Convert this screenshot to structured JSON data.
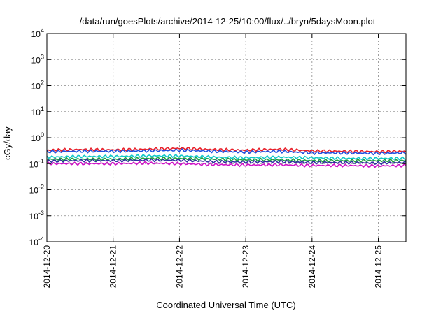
{
  "chart_data": {
    "type": "line",
    "title": "/data/run/goesPlots/archive/2014-12-25/10:00/flux/../bryn/5daysMoon.plot",
    "xlabel": "Coordinated Universal Time (UTC)",
    "ylabel": "cGy/day",
    "yscale": "log",
    "ylim": [
      0.0001,
      10000
    ],
    "y_ticks": [
      {
        "value": 0.0001,
        "base": "10",
        "exp": "-4"
      },
      {
        "value": 0.001,
        "base": "10",
        "exp": "-3"
      },
      {
        "value": 0.01,
        "base": "10",
        "exp": "-2"
      },
      {
        "value": 0.1,
        "base": "10",
        "exp": "-1"
      },
      {
        "value": 1,
        "base": "10",
        "exp": "0"
      },
      {
        "value": 10,
        "base": "10",
        "exp": "1"
      },
      {
        "value": 100,
        "base": "10",
        "exp": "2"
      },
      {
        "value": 1000,
        "base": "10",
        "exp": "3"
      },
      {
        "value": 10000,
        "base": "10",
        "exp": "4"
      }
    ],
    "xlim": [
      "2014-12-20T00:00",
      "2014-12-25T10:00"
    ],
    "x_ticks": [
      "2014-12-20",
      "2014-12-21",
      "2014-12-22",
      "2014-12-23",
      "2014-12-24",
      "2014-12-25"
    ],
    "x": [
      "2014-12-20T00:00",
      "2014-12-20T12:00",
      "2014-12-21T00:00",
      "2014-12-21T12:00",
      "2014-12-22T00:00",
      "2014-12-22T12:00",
      "2014-12-23T00:00",
      "2014-12-23T12:00",
      "2014-12-24T00:00",
      "2014-12-24T12:00",
      "2014-12-25T00:00",
      "2014-12-25T10:00"
    ],
    "grid": true,
    "series": [
      {
        "color": "#e8202a",
        "values": [
          0.33,
          0.35,
          0.34,
          0.36,
          0.39,
          0.35,
          0.33,
          0.36,
          0.31,
          0.3,
          0.29,
          0.3
        ]
      },
      {
        "color": "#2050e0",
        "values": [
          0.29,
          0.3,
          0.3,
          0.31,
          0.33,
          0.3,
          0.28,
          0.3,
          0.26,
          0.26,
          0.25,
          0.26
        ]
      },
      {
        "color": "#10c8c8",
        "values": [
          0.18,
          0.19,
          0.19,
          0.2,
          0.2,
          0.18,
          0.17,
          0.18,
          0.17,
          0.16,
          0.16,
          0.16
        ]
      },
      {
        "color": "#20a040",
        "values": [
          0.15,
          0.15,
          0.15,
          0.16,
          0.16,
          0.15,
          0.14,
          0.14,
          0.13,
          0.13,
          0.13,
          0.13
        ]
      },
      {
        "color": "#3030a0",
        "values": [
          0.125,
          0.13,
          0.13,
          0.135,
          0.135,
          0.12,
          0.115,
          0.12,
          0.11,
          0.11,
          0.105,
          0.11
        ]
      },
      {
        "color": "#d010c8",
        "values": [
          0.1,
          0.1,
          0.1,
          0.105,
          0.1,
          0.092,
          0.088,
          0.09,
          0.085,
          0.085,
          0.082,
          0.085
        ]
      }
    ]
  }
}
